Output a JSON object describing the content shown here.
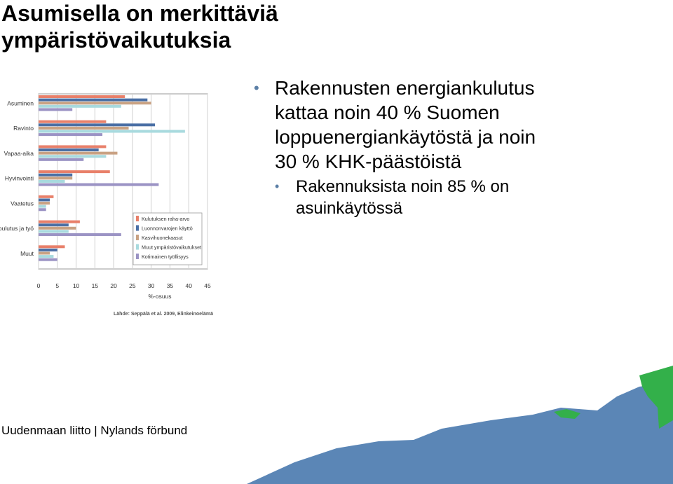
{
  "slide": {
    "title_line1": "Asumisella on merkittäviä",
    "title_line2": "ympäristövaikutuksia",
    "bullet1": [
      "Rakennusten energiankulutus",
      "kattaa noin 40 % Suomen",
      "loppuenergiankäytöstä ja noin",
      "30 % KHK-päästöistä"
    ],
    "bullet2": [
      "Rakennuksista noin 85 % on",
      "asuinkäytössä"
    ],
    "footer": "Uudenmaan liitto | Nylands förbund",
    "bullet_color": "#5b7fa6",
    "map_colors": {
      "sea": "#5b86b6",
      "land": "#33b04a"
    }
  },
  "chart_data": {
    "type": "bar",
    "orientation": "horizontal",
    "categories": [
      "Asuminen",
      "Ravinto",
      "Vapaa-aika",
      "Hyvinvointi",
      "Vaatetus",
      "Koulutus ja työ",
      "Muut"
    ],
    "series": [
      {
        "name": "Kulutuksen raha-arvo",
        "color": "#e8806a",
        "values": [
          23,
          18,
          18,
          19,
          4,
          11,
          7
        ]
      },
      {
        "name": "Luonnonvarojen käyttö",
        "color": "#4a6fa5",
        "values": [
          29,
          31,
          16,
          9,
          3,
          8,
          5
        ]
      },
      {
        "name": "Kasvihuonekaasut",
        "color": "#c9a283",
        "values": [
          30,
          24,
          21,
          9,
          3,
          10,
          3
        ]
      },
      {
        "name": "Muut ympäristövaikutukset",
        "color": "#a8dade",
        "values": [
          22,
          39,
          18,
          7,
          2,
          8,
          4
        ]
      },
      {
        "name": "Kotimainen työllisyys",
        "color": "#9b93c4",
        "values": [
          9,
          17,
          12,
          32,
          2,
          22,
          5
        ]
      }
    ],
    "xlim": [
      0,
      45
    ],
    "xticks": [
      "0",
      "5",
      "10",
      "15",
      "20",
      "25",
      "30",
      "35",
      "40",
      "45"
    ],
    "xlabel": "%-osuus",
    "source": "Lähde: Seppälä et al. 2009, Elinkeinoelämä",
    "legend": "inside-lower-right"
  }
}
